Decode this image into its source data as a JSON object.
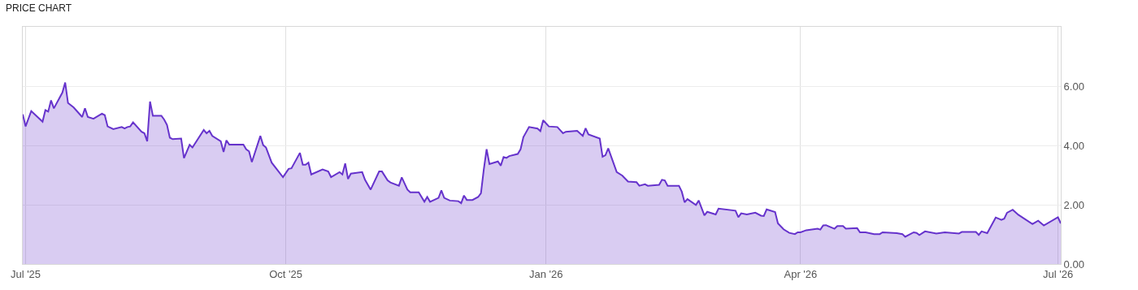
{
  "chart_data": {
    "type": "area",
    "title": "PRICE CHART",
    "x": [
      "2025-06-30",
      "2025-07-01",
      "2025-07-03",
      "2025-07-07",
      "2025-07-08",
      "2025-07-09",
      "2025-07-10",
      "2025-07-11",
      "2025-07-14",
      "2025-07-15",
      "2025-07-16",
      "2025-07-18",
      "2025-07-21",
      "2025-07-22",
      "2025-07-23",
      "2025-07-25",
      "2025-07-28",
      "2025-07-29",
      "2025-07-30",
      "2025-08-01",
      "2025-08-04",
      "2025-08-05",
      "2025-08-06",
      "2025-08-07",
      "2025-08-08",
      "2025-08-11",
      "2025-08-12",
      "2025-08-13",
      "2025-08-14",
      "2025-08-15",
      "2025-08-18",
      "2025-08-19",
      "2025-08-20",
      "2025-08-21",
      "2025-08-22",
      "2025-08-25",
      "2025-08-26",
      "2025-08-28",
      "2025-08-29",
      "2025-09-02",
      "2025-09-03",
      "2025-09-04",
      "2025-09-05",
      "2025-09-08",
      "2025-09-09",
      "2025-09-10",
      "2025-09-11",
      "2025-09-16",
      "2025-09-17",
      "2025-09-18",
      "2025-09-19",
      "2025-09-22",
      "2025-09-23",
      "2025-09-24",
      "2025-09-26",
      "2025-09-30",
      "2025-10-02",
      "2025-10-03",
      "2025-10-06",
      "2025-10-07",
      "2025-10-08",
      "2025-10-09",
      "2025-10-10",
      "2025-10-14",
      "2025-10-16",
      "2025-10-17",
      "2025-10-20",
      "2025-10-21",
      "2025-10-22",
      "2025-10-23",
      "2025-10-24",
      "2025-10-28",
      "2025-10-29",
      "2025-10-31",
      "2025-11-03",
      "2025-11-04",
      "2025-11-06",
      "2025-11-07",
      "2025-11-10",
      "2025-11-11",
      "2025-11-13",
      "2025-11-14",
      "2025-11-17",
      "2025-11-19",
      "2025-11-20",
      "2025-11-21",
      "2025-11-24",
      "2025-11-25",
      "2025-11-26",
      "2025-11-28",
      "2025-12-01",
      "2025-12-02",
      "2025-12-03",
      "2025-12-04",
      "2025-12-06",
      "2025-12-08",
      "2025-12-09",
      "2025-12-10",
      "2025-12-11",
      "2025-12-12",
      "2025-12-15",
      "2025-12-16",
      "2025-12-17",
      "2025-12-18",
      "2025-12-19",
      "2025-12-22",
      "2025-12-23",
      "2025-12-24",
      "2025-12-26",
      "2025-12-29",
      "2025-12-30",
      "2025-12-31",
      "2026-01-02",
      "2026-01-05",
      "2026-01-07",
      "2026-01-08",
      "2026-01-12",
      "2026-01-14",
      "2026-01-15",
      "2026-01-16",
      "2026-01-20",
      "2026-01-21",
      "2026-01-22",
      "2026-01-23",
      "2026-01-26",
      "2026-01-28",
      "2026-01-30",
      "2026-02-02",
      "2026-02-03",
      "2026-02-05",
      "2026-02-06",
      "2026-02-10",
      "2026-02-11",
      "2026-02-12",
      "2026-02-13",
      "2026-02-17",
      "2026-02-18",
      "2026-02-19",
      "2026-02-20",
      "2026-02-23",
      "2026-02-24",
      "2026-02-26",
      "2026-02-27",
      "2026-03-02",
      "2026-03-03",
      "2026-03-09",
      "2026-03-10",
      "2026-03-11",
      "2026-03-13",
      "2026-03-16",
      "2026-03-18",
      "2026-03-19",
      "2026-03-20",
      "2026-03-23",
      "2026-03-24",
      "2026-03-26",
      "2026-03-28",
      "2026-03-30",
      "2026-03-31",
      "2026-04-01",
      "2026-04-03",
      "2026-04-07",
      "2026-04-08",
      "2026-04-09",
      "2026-04-10",
      "2026-04-13",
      "2026-04-14",
      "2026-04-16",
      "2026-04-17",
      "2026-04-21",
      "2026-04-22",
      "2026-04-24",
      "2026-04-27",
      "2026-04-29",
      "2026-04-30",
      "2026-05-05",
      "2026-05-07",
      "2026-05-08",
      "2026-05-11",
      "2026-05-12",
      "2026-05-13",
      "2026-05-15",
      "2026-05-19",
      "2026-05-22",
      "2026-05-27",
      "2026-05-28",
      "2026-06-02",
      "2026-06-03",
      "2026-06-04",
      "2026-06-06",
      "2026-06-09",
      "2026-06-11",
      "2026-06-12",
      "2026-06-13",
      "2026-06-15",
      "2026-06-17",
      "2026-06-22",
      "2026-06-24",
      "2026-06-26",
      "2026-07-01",
      "2026-07-02"
    ],
    "series": [
      {
        "color": "#6633cc",
        "values": [
          5.05,
          4.64,
          5.16,
          4.8,
          5.19,
          5.14,
          5.52,
          5.25,
          5.78,
          6.12,
          5.43,
          5.28,
          4.96,
          5.25,
          4.96,
          4.9,
          5.07,
          5.02,
          4.64,
          4.55,
          4.62,
          4.57,
          4.62,
          4.64,
          4.78,
          4.46,
          4.41,
          4.14,
          5.48,
          5.0,
          5.0,
          4.87,
          4.69,
          4.26,
          4.21,
          4.23,
          3.57,
          4.02,
          3.93,
          4.52,
          4.41,
          4.49,
          4.32,
          4.14,
          3.78,
          4.17,
          4.03,
          4.03,
          3.87,
          3.8,
          3.44,
          4.32,
          4.01,
          3.93,
          3.42,
          2.93,
          3.21,
          3.23,
          3.75,
          3.35,
          3.35,
          3.42,
          3.02,
          3.19,
          3.12,
          2.93,
          3.1,
          3.02,
          3.39,
          2.87,
          3.05,
          3.1,
          2.84,
          2.51,
          3.12,
          3.12,
          2.82,
          2.75,
          2.64,
          2.92,
          2.51,
          2.42,
          2.42,
          2.1,
          2.26,
          2.1,
          2.23,
          2.48,
          2.23,
          2.14,
          2.12,
          2.05,
          2.31,
          2.16,
          2.16,
          2.26,
          2.39,
          3.19,
          3.87,
          3.37,
          3.46,
          3.32,
          3.61,
          3.58,
          3.64,
          3.71,
          3.87,
          4.28,
          4.62,
          4.57,
          4.48,
          4.85,
          4.64,
          4.62,
          4.41,
          4.46,
          4.49,
          4.32,
          4.58,
          4.37,
          4.23,
          3.62,
          3.67,
          3.9,
          3.1,
          2.98,
          2.78,
          2.76,
          2.64,
          2.69,
          2.64,
          2.67,
          2.84,
          2.82,
          2.64,
          2.64,
          2.44,
          2.08,
          2.19,
          1.99,
          2.14,
          1.64,
          1.76,
          1.67,
          1.87,
          1.8,
          1.58,
          1.71,
          1.67,
          1.73,
          1.63,
          1.62,
          1.84,
          1.75,
          1.37,
          1.17,
          1.05,
          1.01,
          1.07,
          1.07,
          1.14,
          1.19,
          1.16,
          1.3,
          1.31,
          1.19,
          1.28,
          1.28,
          1.19,
          1.21,
          1.07,
          1.07,
          1.01,
          1.01,
          1.07,
          1.04,
          1.01,
          0.92,
          1.07,
          1.05,
          0.98,
          1.1,
          1.03,
          1.07,
          1.03,
          1.08,
          1.08,
          0.98,
          1.1,
          1.04,
          1.57,
          1.49,
          1.53,
          1.73,
          1.83,
          1.66,
          1.35,
          1.46,
          1.3,
          1.58,
          1.37
        ]
      }
    ],
    "xlim": [
      "2025-06-30",
      "2026-07-02"
    ],
    "xticks": [
      {
        "value": "2025-07-01",
        "label": "Jul '25"
      },
      {
        "value": "2025-10-01",
        "label": "Oct '25"
      },
      {
        "value": "2026-01-01",
        "label": "Jan '26"
      },
      {
        "value": "2026-04-01",
        "label": "Apr '26"
      },
      {
        "value": "2026-07-01",
        "label": "Jul '26"
      }
    ],
    "ylim": [
      0,
      8
    ],
    "yticks": [
      {
        "value": 0,
        "label": "0.00"
      },
      {
        "value": 2,
        "label": "2.00"
      },
      {
        "value": 4,
        "label": "4.00"
      },
      {
        "value": 6,
        "label": "6.00"
      }
    ],
    "grid": true,
    "marker": "none",
    "line_style": "solid"
  }
}
